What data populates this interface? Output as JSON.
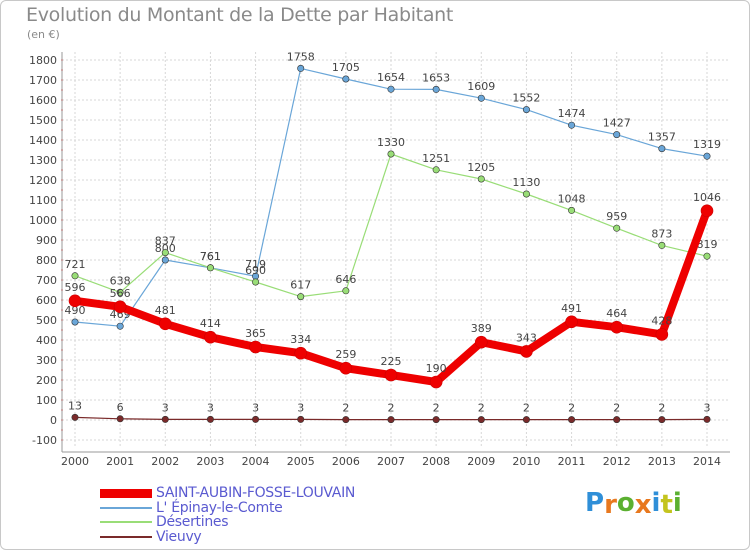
{
  "title": "Evolution du Montant de la Dette par Habitant",
  "subtitle": "(en €)",
  "logo": {
    "letters": [
      "P",
      "r",
      "o",
      "x",
      "i",
      "t",
      "i"
    ],
    "colors": [
      "#2f8fd8",
      "#e8781e",
      "#5bb031",
      "#e8781e",
      "#2f8fd8",
      "#c4c41e",
      "#5bb031"
    ]
  },
  "chart_data": {
    "type": "line",
    "title": "Evolution du Montant de la Dette par Habitant",
    "ylabel": "(en €)",
    "xlabel": "",
    "ylim": [
      -100,
      1800
    ],
    "yticks": [
      "1800",
      "1700",
      "1600",
      "1500",
      "1400",
      "1300",
      "1200",
      "1100",
      "1000",
      "900",
      "800",
      "700",
      "600",
      "500",
      "400",
      "300",
      "200",
      "100",
      "0",
      "-100"
    ],
    "x": [
      "2000",
      "2001",
      "2002",
      "2003",
      "2004",
      "2005",
      "2006",
      "2007",
      "2008",
      "2009",
      "2010",
      "2011",
      "2012",
      "2013",
      "2014"
    ],
    "grid": true,
    "series": [
      {
        "name": "SAINT-AUBIN-FOSSE-LOUVAIN",
        "color": "#ee0000",
        "width": 8,
        "values": [
          596,
          566,
          481,
          414,
          365,
          334,
          259,
          225,
          190,
          389,
          343,
          491,
          464,
          428,
          1046
        ]
      },
      {
        "name": "L' Épinay-le-Comte",
        "color": "#6aa6d8",
        "width": 1.2,
        "values": [
          490,
          469,
          800,
          761,
          719,
          1758,
          1705,
          1654,
          1653,
          1609,
          1552,
          1474,
          1427,
          1357,
          1319
        ]
      },
      {
        "name": "Désertines",
        "color": "#99dd77",
        "width": 1.2,
        "values": [
          721,
          638,
          837,
          761,
          690,
          617,
          646,
          1330,
          1251,
          1205,
          1130,
          1048,
          959,
          873,
          819
        ]
      },
      {
        "name": "Vieuvy",
        "color": "#7a2a2a",
        "width": 1.2,
        "values": [
          13,
          6,
          3,
          3,
          3,
          3,
          2,
          2,
          2,
          2,
          2,
          2,
          2,
          2,
          3
        ]
      }
    ]
  }
}
